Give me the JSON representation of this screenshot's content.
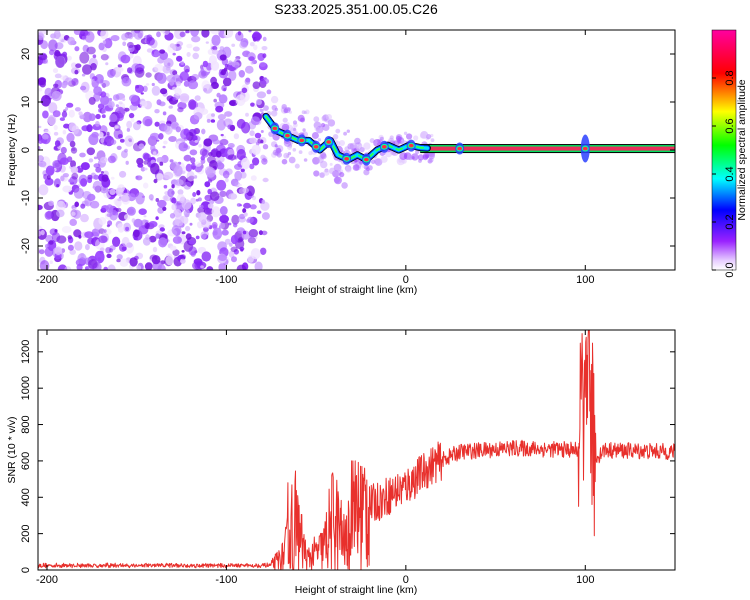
{
  "title": "S233.2025.351.00.05.C26",
  "colors": {
    "snr_line": "#e8302c",
    "noise_blob": "#8a22ff",
    "frame": "#000000",
    "signal_core": "#e8305a"
  },
  "chart_data": [
    {
      "type": "heatmap",
      "name": "spectrogram",
      "xlabel": "Height of straight line (km)",
      "ylabel": "Frequency (Hz)",
      "xlim": [
        -205,
        150
      ],
      "ylim": [
        -25,
        25
      ],
      "xticks": [
        -200,
        -100,
        0,
        100
      ],
      "yticks": [
        -20,
        -10,
        0,
        10,
        20
      ],
      "colorbar": {
        "label": "Normalized spectral amplitude",
        "range": [
          0.0,
          1.0
        ],
        "ticks": [
          0.0,
          0.2,
          0.4,
          0.6,
          0.8
        ],
        "tick_labels": [
          "0.0",
          "0.2",
          "0.4",
          "0.6",
          "0.8"
        ],
        "colormap": [
          "#ffffff",
          "#8a00ff",
          "#0000ff",
          "#00ffff",
          "#00ff00",
          "#ffff00",
          "#ff0000",
          "#ff00a0"
        ]
      },
      "noise_region_x": [
        -205,
        -78
      ],
      "signal_track": [
        {
          "x": -78,
          "y": 7
        },
        {
          "x": -72,
          "y": 4
        },
        {
          "x": -66,
          "y": 3
        },
        {
          "x": -60,
          "y": 2
        },
        {
          "x": -54,
          "y": 2
        },
        {
          "x": -48,
          "y": 0
        },
        {
          "x": -42,
          "y": 2
        },
        {
          "x": -38,
          "y": -1
        },
        {
          "x": -32,
          "y": -2
        },
        {
          "x": -27,
          "y": -1
        },
        {
          "x": -22,
          "y": -2
        },
        {
          "x": -16,
          "y": 0
        },
        {
          "x": -10,
          "y": 1
        },
        {
          "x": -4,
          "y": 0
        },
        {
          "x": 2,
          "y": 1
        },
        {
          "x": 8,
          "y": 0.5
        },
        {
          "x": 15,
          "y": 0.3
        },
        {
          "x": 60,
          "y": 0.3
        },
        {
          "x": 150,
          "y": 0.3
        }
      ],
      "bright_spots_x": [
        -73,
        -66,
        -58,
        -50,
        -43,
        -33,
        -22,
        -12,
        3,
        30,
        100
      ]
    },
    {
      "type": "line",
      "name": "snr",
      "xlabel": "Height of straight line (km)",
      "ylabel": "SNR (10 * v/v)",
      "xlim": [
        -205,
        150
      ],
      "ylim": [
        0,
        1320
      ],
      "xticks": [
        -200,
        -100,
        0,
        100
      ],
      "yticks": [
        0,
        200,
        400,
        600,
        800,
        1000,
        1200
      ],
      "series": [
        {
          "name": "SNR",
          "anchors": [
            {
              "x": -205,
              "y": 25
            },
            {
              "x": -75,
              "y": 25
            },
            {
              "x": -68,
              "y": 80
            },
            {
              "x": -62,
              "y": 280
            },
            {
              "x": -55,
              "y": 60
            },
            {
              "x": -46,
              "y": 120
            },
            {
              "x": -40,
              "y": 300
            },
            {
              "x": -34,
              "y": 140
            },
            {
              "x": -25,
              "y": 330
            },
            {
              "x": -15,
              "y": 380
            },
            {
              "x": 0,
              "y": 460
            },
            {
              "x": 15,
              "y": 580
            },
            {
              "x": 30,
              "y": 650
            },
            {
              "x": 60,
              "y": 670
            },
            {
              "x": 96,
              "y": 660
            },
            {
              "x": 99,
              "y": 900
            },
            {
              "x": 102,
              "y": 1100
            },
            {
              "x": 105,
              "y": 600
            },
            {
              "x": 110,
              "y": 660
            },
            {
              "x": 150,
              "y": 650
            }
          ]
        }
      ]
    }
  ]
}
